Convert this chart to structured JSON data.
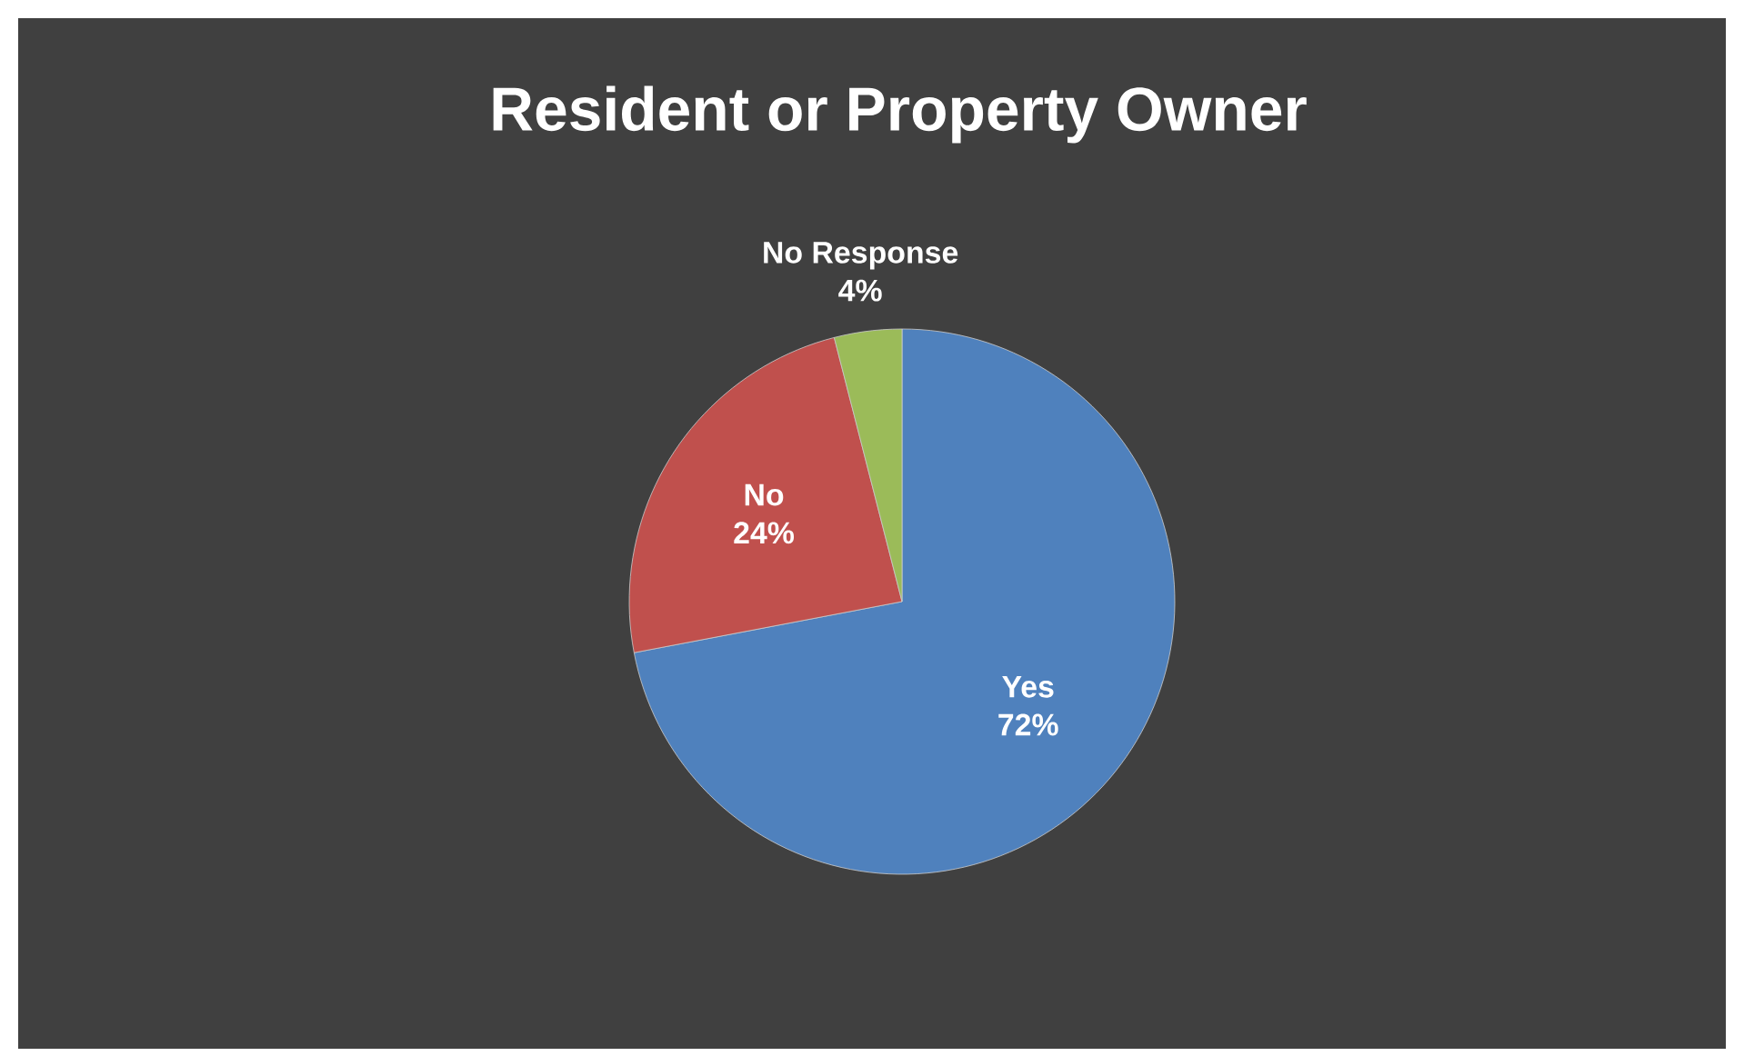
{
  "chart_data": {
    "type": "pie",
    "title": "Resident or Property Owner",
    "categories": [
      "Yes",
      "No",
      "No Response"
    ],
    "values": [
      72,
      24,
      4
    ],
    "value_labels": [
      "72%",
      "24%",
      "4%"
    ],
    "colors": [
      "#4f81bd",
      "#c0504d",
      "#9bbb59"
    ]
  }
}
